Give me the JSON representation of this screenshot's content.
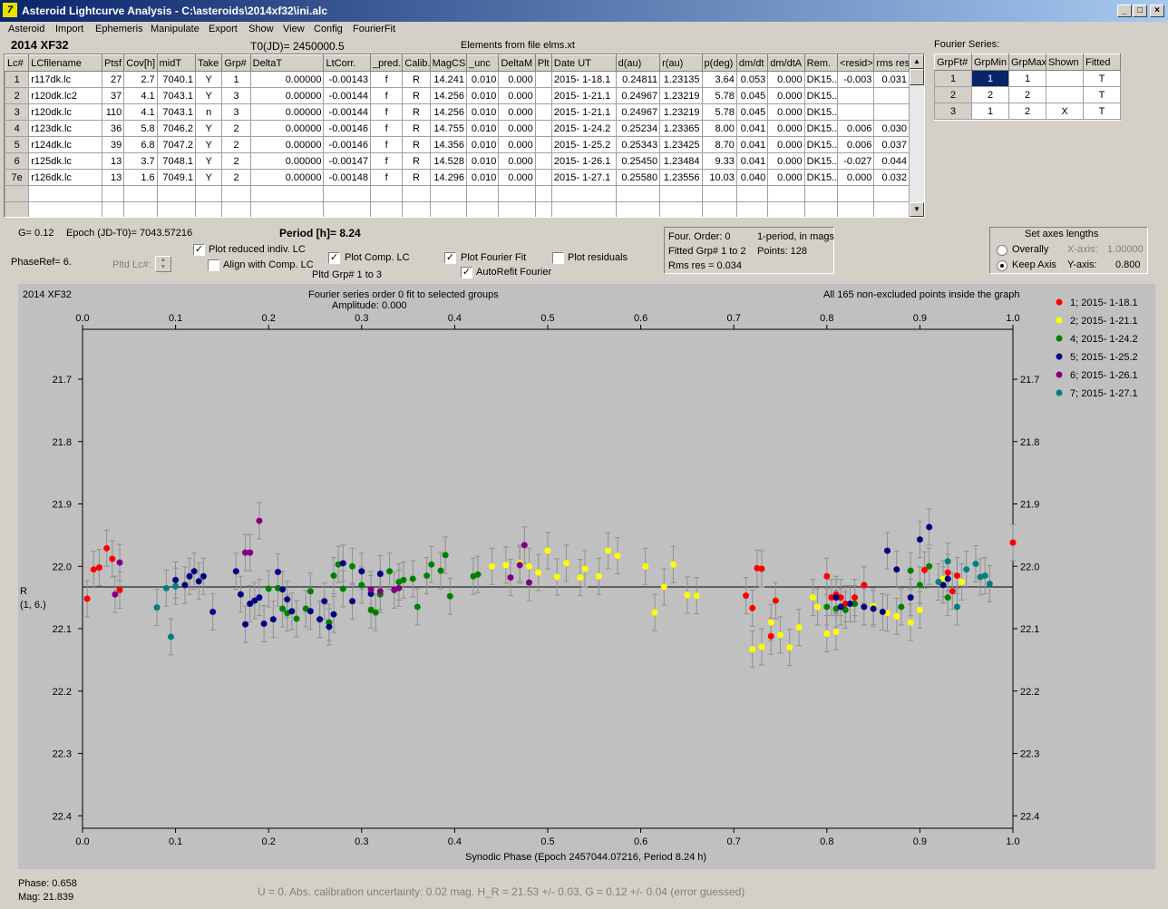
{
  "window": {
    "title": "Asteroid Lightcurve Analysis - C:\\asteroids\\2014xf32\\ini.alc",
    "icon": "app-icon",
    "min": "_",
    "max": "□",
    "close": "×"
  },
  "menu": [
    "Asteroid",
    "Import",
    "Ephemeris",
    "Manipulate",
    "Export",
    "Show",
    "View",
    "Config",
    "FourierFit"
  ],
  "header": {
    "object": "2014 XF32",
    "t0": "T0(JD)= 2450000.5",
    "elements": "Elements from file elms.xt"
  },
  "lc_table": {
    "columns": [
      "Lc#",
      "LCfilename",
      "Ptsf",
      "Cov[h]",
      "midT",
      "Take",
      "Grp#",
      "DeltaT",
      "LtCorr.",
      "_pred.",
      "Calib.",
      "MagCS",
      "_unc",
      "DeltaM",
      "Plt",
      "Date UT",
      "d(au)",
      "r(au)",
      "p(deg)",
      "dm/dt",
      "dm/dtA",
      "Rem.",
      "<resid>",
      "rms res"
    ],
    "rows": [
      [
        "1",
        "r117dk.lc",
        "27",
        "2.7",
        "7040.1",
        "Y",
        "1",
        "0.00000",
        "-0.00143",
        "f",
        "R",
        "14.241",
        "0.010",
        "0.000",
        "",
        "2015- 1-18.1",
        "0.24811",
        "1.23135",
        "3.64",
        "0.053",
        "0.000",
        "DK15...",
        "-0.003",
        "0.031"
      ],
      [
        "2",
        "r120dk.lc2",
        "37",
        "4.1",
        "7043.1",
        "Y",
        "3",
        "0.00000",
        "-0.00144",
        "f",
        "R",
        "14.256",
        "0.010",
        "0.000",
        "",
        "2015- 1-21.1",
        "0.24967",
        "1.23219",
        "5.78",
        "0.045",
        "0.000",
        "DK15...",
        "",
        ""
      ],
      [
        "3",
        "r120dk.lc",
        "110",
        "4.1",
        "7043.1",
        "n",
        "3",
        "0.00000",
        "-0.00144",
        "f",
        "R",
        "14.256",
        "0.010",
        "0.000",
        "",
        "2015- 1-21.1",
        "0.24967",
        "1.23219",
        "5.78",
        "0.045",
        "0.000",
        "DK15...",
        "",
        ""
      ],
      [
        "4",
        "r123dk.lc",
        "36",
        "5.8",
        "7046.2",
        "Y",
        "2",
        "0.00000",
        "-0.00146",
        "f",
        "R",
        "14.755",
        "0.010",
        "0.000",
        "",
        "2015- 1-24.2",
        "0.25234",
        "1.23365",
        "8.00",
        "0.041",
        "0.000",
        "DK15...",
        "0.006",
        "0.030"
      ],
      [
        "5",
        "r124dk.lc",
        "39",
        "6.8",
        "7047.2",
        "Y",
        "2",
        "0.00000",
        "-0.00146",
        "f",
        "R",
        "14.356",
        "0.010",
        "0.000",
        "",
        "2015- 1-25.2",
        "0.25343",
        "1.23425",
        "8.70",
        "0.041",
        "0.000",
        "DK15...",
        "0.006",
        "0.037"
      ],
      [
        "6",
        "r125dk.lc",
        "13",
        "3.7",
        "7048.1",
        "Y",
        "2",
        "0.00000",
        "-0.00147",
        "f",
        "R",
        "14.528",
        "0.010",
        "0.000",
        "",
        "2015- 1-26.1",
        "0.25450",
        "1.23484",
        "9.33",
        "0.041",
        "0.000",
        "DK15...",
        "-0.027",
        "0.044"
      ],
      [
        "7e",
        "r126dk.lc",
        "13",
        "1.6",
        "7049.1",
        "Y",
        "2",
        "0.00000",
        "-0.00148",
        "f",
        "R",
        "14.296",
        "0.010",
        "0.000",
        "",
        "2015- 1-27.1",
        "0.25580",
        "1.23556",
        "10.03",
        "0.040",
        "0.000",
        "DK15...",
        "0.000",
        "0.032"
      ]
    ]
  },
  "fourier": {
    "title": "Fourier Series:",
    "columns": [
      "GrpFt#",
      "GrpMin",
      "GrpMax",
      "Shown",
      "Fitted"
    ],
    "rows": [
      [
        "1",
        "1",
        "1",
        "",
        "T"
      ],
      [
        "2",
        "2",
        "2",
        "",
        "T"
      ],
      [
        "3",
        "1",
        "2",
        "X",
        "T"
      ]
    ]
  },
  "params": {
    "g": "G= 0.12",
    "epoch": "Epoch (JD-T0)= 7043.57216",
    "period": "Period [h]= 8.24",
    "phaseref": "PhaseRef= 6.",
    "pltdlc": "Pltd Lc#:",
    "pltdgrp": "Pltd Grp#  1   to   3"
  },
  "checks": {
    "reduced": "Plot reduced indiv. LC",
    "align": "Align with Comp. LC",
    "comp": "Plot Comp. LC",
    "fourier": "Plot Fourier Fit",
    "autorefit": "AutoRefit Fourier",
    "residuals": "Plot residuals"
  },
  "fitinfo": {
    "order": "Four. Order:  0",
    "oneperiod": "1-period, in mags",
    "fitted": "Fitted Grp# 1 to 2",
    "points": "Points: 128",
    "rms": "Rms res      = 0.034"
  },
  "axes_box": {
    "title": "Set axes lengths",
    "overally": "Overally",
    "keep": "Keep Axis",
    "xaxis_label": "X-axis:",
    "xaxis_val": "1.00000",
    "yaxis_label": "Y-axis:",
    "yaxis_val": "0.800"
  },
  "plot": {
    "object": "2014 XF32",
    "fit_title": "Fourier series order 0 fit to selected groups",
    "amplitude": "Amplitude: 0.000",
    "points_note": "All 165 non-excluded points inside the graph",
    "ylabel1": "R",
    "ylabel2": "(1, 6.)"
  },
  "status": {
    "phase": "Phase:  0.658",
    "mag": "Mag:    21.839",
    "calib": "U = 0.  Abs. calibration uncertainty: 0.02 mag.  H_R = 21.53 +/- 0.03, G = 0.12 +/- 0.04 (error guessed)"
  },
  "chart_data": {
    "type": "scatter",
    "xlabel": "Synodic Phase (Epoch 2457044.07216, Period 8.24 h)",
    "xlim": [
      0,
      1
    ],
    "ylim": [
      22.42,
      21.62
    ],
    "inverted_y": true,
    "xticks": [
      "0.0",
      "0.1",
      "0.2",
      "0.3",
      "0.4",
      "0.5",
      "0.6",
      "0.7",
      "0.8",
      "0.9",
      "1.0"
    ],
    "yticks": [
      "21.7",
      "21.8",
      "21.9",
      "22.0",
      "22.1",
      "22.2",
      "22.3",
      "22.4"
    ],
    "fit_line": 22.033,
    "series": [
      {
        "name": "1; 2015- 1-18.1",
        "color": "#ff0000",
        "points": [
          [
            0.005,
            22.052
          ],
          [
            0.012,
            22.005
          ],
          [
            0.018,
            22.002
          ],
          [
            0.026,
            21.971
          ],
          [
            0.032,
            21.988
          ],
          [
            0.04,
            22.038
          ],
          [
            0.713,
            22.047
          ],
          [
            0.72,
            22.067
          ],
          [
            0.725,
            22.003
          ],
          [
            0.73,
            22.004
          ],
          [
            0.74,
            22.112
          ],
          [
            0.745,
            22.055
          ],
          [
            0.8,
            22.016
          ],
          [
            0.805,
            22.05
          ],
          [
            0.81,
            22.045
          ],
          [
            0.815,
            22.05
          ],
          [
            0.82,
            22.06
          ],
          [
            0.83,
            22.05
          ],
          [
            0.84,
            22.03
          ],
          [
            0.905,
            22.006
          ],
          [
            0.93,
            22.01
          ],
          [
            0.935,
            22.04
          ],
          [
            0.94,
            22.015
          ],
          [
            1.0,
            21.962
          ]
        ]
      },
      {
        "name": "2; 2015- 1-21.1",
        "color": "#ffff00",
        "points": [
          [
            0.44,
            22.0
          ],
          [
            0.455,
            21.998
          ],
          [
            0.47,
            21.995
          ],
          [
            0.48,
            22.0
          ],
          [
            0.49,
            22.01
          ],
          [
            0.5,
            21.975
          ],
          [
            0.51,
            22.017
          ],
          [
            0.52,
            21.995
          ],
          [
            0.535,
            22.018
          ],
          [
            0.54,
            22.004
          ],
          [
            0.555,
            22.016
          ],
          [
            0.565,
            21.975
          ],
          [
            0.575,
            21.983
          ],
          [
            0.605,
            22.0
          ],
          [
            0.615,
            22.074
          ],
          [
            0.625,
            22.033
          ],
          [
            0.635,
            21.997
          ],
          [
            0.65,
            22.046
          ],
          [
            0.66,
            22.047
          ],
          [
            0.72,
            22.133
          ],
          [
            0.73,
            22.129
          ],
          [
            0.74,
            22.09
          ],
          [
            0.75,
            22.11
          ],
          [
            0.76,
            22.13
          ],
          [
            0.77,
            22.098
          ],
          [
            0.785,
            22.05
          ],
          [
            0.79,
            22.065
          ],
          [
            0.8,
            22.108
          ],
          [
            0.81,
            22.105
          ],
          [
            0.85,
            22.064
          ],
          [
            0.865,
            22.075
          ],
          [
            0.875,
            22.08
          ],
          [
            0.89,
            22.09
          ],
          [
            0.9,
            22.07
          ],
          [
            0.925,
            22.02
          ],
          [
            0.945,
            22.025
          ]
        ]
      },
      {
        "name": "4; 2015- 1-24.2",
        "color": "#008000",
        "points": [
          [
            0.2,
            22.036
          ],
          [
            0.21,
            22.035
          ],
          [
            0.215,
            22.068
          ],
          [
            0.22,
            22.075
          ],
          [
            0.23,
            22.084
          ],
          [
            0.24,
            22.068
          ],
          [
            0.245,
            22.04
          ],
          [
            0.255,
            22.085
          ],
          [
            0.265,
            22.09
          ],
          [
            0.27,
            22.015
          ],
          [
            0.275,
            21.997
          ],
          [
            0.28,
            22.036
          ],
          [
            0.29,
            22.0
          ],
          [
            0.3,
            22.03
          ],
          [
            0.31,
            22.07
          ],
          [
            0.315,
            22.074
          ],
          [
            0.32,
            22.045
          ],
          [
            0.33,
            22.008
          ],
          [
            0.34,
            22.025
          ],
          [
            0.345,
            22.022
          ],
          [
            0.355,
            22.02
          ],
          [
            0.36,
            22.065
          ],
          [
            0.37,
            22.015
          ],
          [
            0.375,
            21.997
          ],
          [
            0.385,
            22.007
          ],
          [
            0.39,
            21.982
          ],
          [
            0.395,
            22.048
          ],
          [
            0.42,
            22.016
          ],
          [
            0.425,
            22.013
          ],
          [
            0.8,
            22.065
          ],
          [
            0.81,
            22.068
          ],
          [
            0.82,
            22.07
          ],
          [
            0.83,
            22.06
          ],
          [
            0.88,
            22.065
          ],
          [
            0.89,
            22.007
          ],
          [
            0.9,
            22.03
          ],
          [
            0.91,
            22.0
          ],
          [
            0.93,
            22.05
          ]
        ]
      },
      {
        "name": "5; 2015- 1-25.2",
        "color": "#000080",
        "points": [
          [
            0.1,
            22.022
          ],
          [
            0.11,
            22.03
          ],
          [
            0.115,
            22.016
          ],
          [
            0.12,
            22.008
          ],
          [
            0.125,
            22.024
          ],
          [
            0.13,
            22.016
          ],
          [
            0.14,
            22.073
          ],
          [
            0.165,
            22.008
          ],
          [
            0.17,
            22.045
          ],
          [
            0.175,
            22.093
          ],
          [
            0.18,
            22.06
          ],
          [
            0.185,
            22.055
          ],
          [
            0.19,
            22.05
          ],
          [
            0.195,
            22.092
          ],
          [
            0.205,
            22.085
          ],
          [
            0.21,
            22.009
          ],
          [
            0.215,
            22.037
          ],
          [
            0.22,
            22.053
          ],
          [
            0.225,
            22.072
          ],
          [
            0.245,
            22.072
          ],
          [
            0.255,
            22.085
          ],
          [
            0.26,
            22.056
          ],
          [
            0.265,
            22.097
          ],
          [
            0.27,
            22.077
          ],
          [
            0.28,
            21.995
          ],
          [
            0.29,
            22.056
          ],
          [
            0.3,
            22.008
          ],
          [
            0.31,
            22.044
          ],
          [
            0.32,
            22.012
          ],
          [
            0.81,
            22.05
          ],
          [
            0.815,
            22.065
          ],
          [
            0.825,
            22.06
          ],
          [
            0.84,
            22.065
          ],
          [
            0.85,
            22.068
          ],
          [
            0.86,
            22.073
          ],
          [
            0.865,
            21.975
          ],
          [
            0.875,
            22.005
          ],
          [
            0.89,
            22.05
          ],
          [
            0.9,
            21.957
          ],
          [
            0.91,
            21.937
          ],
          [
            0.925,
            22.03
          ],
          [
            0.93,
            22.02
          ]
        ]
      },
      {
        "name": "6; 2015- 1-26.1",
        "color": "#800080",
        "points": [
          [
            0.035,
            22.045
          ],
          [
            0.04,
            21.994
          ],
          [
            0.175,
            21.978
          ],
          [
            0.18,
            21.978
          ],
          [
            0.19,
            21.927
          ],
          [
            0.31,
            22.037
          ],
          [
            0.32,
            22.04
          ],
          [
            0.335,
            22.038
          ],
          [
            0.34,
            22.035
          ],
          [
            0.46,
            22.018
          ],
          [
            0.47,
            21.998
          ],
          [
            0.475,
            21.966
          ],
          [
            0.48,
            22.026
          ]
        ]
      },
      {
        "name": "7; 2015- 1-27.1",
        "color": "#008080",
        "points": [
          [
            0.08,
            22.066
          ],
          [
            0.09,
            22.035
          ],
          [
            0.095,
            22.113
          ],
          [
            0.1,
            22.032
          ],
          [
            0.92,
            22.025
          ],
          [
            0.93,
            21.992
          ],
          [
            0.94,
            22.065
          ],
          [
            0.95,
            22.005
          ],
          [
            0.96,
            21.996
          ],
          [
            0.965,
            22.017
          ],
          [
            0.97,
            22.015
          ],
          [
            0.975,
            22.028
          ]
        ]
      }
    ]
  }
}
